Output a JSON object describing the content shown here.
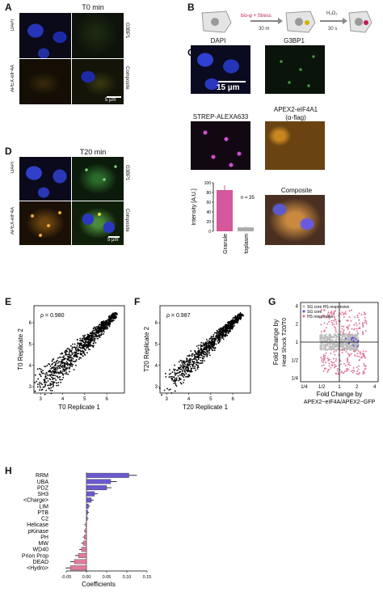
{
  "panels": {
    "A": {
      "letter": "A",
      "title": "T0 min",
      "labels": [
        "DAPI",
        "G3BP1",
        "APEX-eIF4A",
        "Composite"
      ],
      "scale": "5 µm"
    },
    "B": {
      "letter": "B",
      "steps": [
        "bio-φ + Stress",
        "30 m",
        "H₂O₂",
        "30 s"
      ]
    },
    "C": {
      "letter": "C",
      "labels": [
        "DAPI",
        "G3BP1",
        "STREP-ALEXA633",
        "APEX2-eIF4A1",
        "(α-flag)",
        "Composite"
      ],
      "scale": "15 µm"
    },
    "D": {
      "letter": "D",
      "title": "T20 min",
      "labels": [
        "DAPI",
        "G3BP1",
        "APEX-eIF4A",
        "Composite"
      ],
      "scale": "5 µm"
    },
    "E": {
      "letter": "E"
    },
    "F": {
      "letter": "F"
    },
    "G": {
      "letter": "G"
    },
    "H": {
      "letter": "H"
    }
  },
  "colors": {
    "dapi": "#1d2aa8",
    "g3bp1": "#3d9a3d",
    "apex": "#d99320",
    "granule_bar": "#d4589b",
    "cyto_bar": "#aaaaaa",
    "purple": "#6a5acd",
    "pink": "#e07b9a"
  },
  "chart_data": [
    {
      "id": "C-bar",
      "type": "bar",
      "categories": [
        "Granule",
        "Cytoplasm"
      ],
      "values": [
        85,
        8
      ],
      "errors": [
        10,
        2
      ],
      "ylabel": "Intensity [A.U.]",
      "ylim": [
        0,
        100
      ],
      "yticks": [
        "0",
        "20",
        "40",
        "60",
        "80",
        "100"
      ],
      "annotation": "n = 35"
    },
    {
      "id": "E",
      "type": "scatter",
      "rho": "ρ = 0.980",
      "xlabel": "T0 Replicate 1",
      "ylabel": "T0 Replicate 2",
      "xticks": [
        "3",
        "4",
        "5",
        "6"
      ],
      "yticks": [
        "3",
        "4",
        "5",
        "6"
      ],
      "xlim": [
        2.7,
        6.8
      ],
      "ylim": [
        2.7,
        6.8
      ]
    },
    {
      "id": "F",
      "type": "scatter",
      "rho": "ρ = 0.987",
      "xlabel": "T20 Replicate 1",
      "ylabel": "T20 Replicate 2",
      "xticks": [
        "3",
        "4",
        "5",
        "6"
      ],
      "yticks": [
        "3",
        "4",
        "5",
        "6"
      ],
      "xlim": [
        2.7,
        6.8
      ],
      "ylim": [
        2.7,
        6.8
      ]
    },
    {
      "id": "G",
      "type": "scatter",
      "xlabel": "Fold Change by",
      "xlabel2": "APEX2−eIF4A/APEX2−GFP",
      "ylabel": "Fold Change by",
      "ylabel2": "Heat Shock T20/T0",
      "xticks": [
        "1/4",
        "1/2",
        "1",
        "2",
        "4"
      ],
      "yticks": [
        "1/4",
        "1/2",
        "1",
        "2",
        "4"
      ],
      "legend": [
        "SG core HS responsive",
        "SG core",
        "HS responsive"
      ],
      "scale": "log2"
    },
    {
      "id": "H",
      "type": "bar",
      "orientation": "horizontal",
      "categories": [
        "RRM",
        "UBA",
        "PDZ",
        "SH3",
        "<Charge>",
        "LIM",
        "PTB",
        "C2",
        "Helicase",
        "pKinase",
        "PH",
        "MW",
        "WD40",
        "Prion Prop",
        "DEAD",
        "<Hydro>"
      ],
      "values": [
        0.105,
        0.06,
        0.05,
        0.02,
        0.012,
        0.005,
        0.003,
        0.002,
        -0.002,
        -0.003,
        -0.005,
        -0.008,
        -0.012,
        -0.02,
        -0.03,
        -0.04
      ],
      "errors": [
        0.02,
        0.015,
        0.012,
        0.008,
        0.006,
        0.004,
        0.003,
        0.003,
        0.003,
        0.003,
        0.004,
        0.005,
        0.006,
        0.008,
        0.01,
        0.012
      ],
      "xlabel": "Coefficients",
      "xticks": [
        "-0.05",
        "0.00",
        "0.05",
        "0.10",
        "0.15"
      ],
      "xlim": [
        -0.05,
        0.15
      ]
    }
  ]
}
